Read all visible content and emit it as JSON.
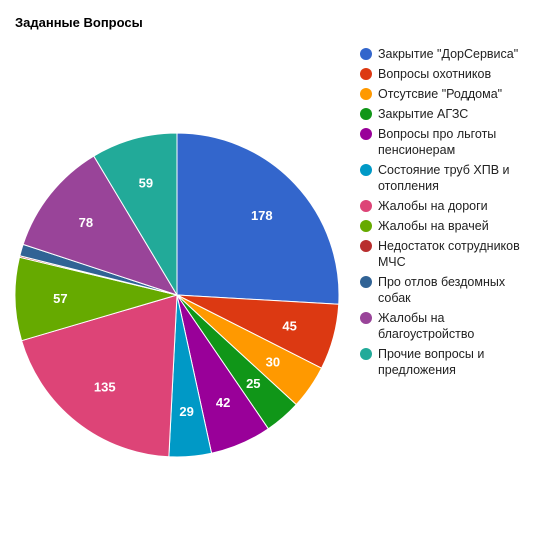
{
  "chart_data": {
    "type": "pie",
    "title": "Заданные Вопросы",
    "legend_position": "right",
    "slices": [
      {
        "label": "Закрытие \"ДорСервиса\"",
        "value": 178,
        "color": "#3366cc"
      },
      {
        "label": "Вопросы охотников",
        "value": 45,
        "color": "#dc3912"
      },
      {
        "label": "Отсутсвие \"Роддома\"",
        "value": 30,
        "color": "#ff9900"
      },
      {
        "label": "Закрытие АГЗС",
        "value": 25,
        "color": "#109618"
      },
      {
        "label": "Вопросы про льготы пенсионерам",
        "value": 42,
        "color": "#990099"
      },
      {
        "label": "Состояние труб ХПВ и отопления",
        "value": 29,
        "color": "#0099c6"
      },
      {
        "label": "Жалобы на дороги",
        "value": 135,
        "color": "#dd4477"
      },
      {
        "label": "Жалобы на врачей",
        "value": 57,
        "color": "#66aa00"
      },
      {
        "label": "Недостаток сотрудников МЧС",
        "value": 1,
        "color": "#b82e2e"
      },
      {
        "label": "Про отлов бездомных собак",
        "value": 8,
        "color": "#316395"
      },
      {
        "label": "Жалобы на благоустройство",
        "value": 78,
        "color": "#994499"
      },
      {
        "label": "Прочие вопросы и предложения",
        "value": 59,
        "color": "#22aa99"
      }
    ],
    "data_labels": [
      "178",
      "45",
      "30",
      "25",
      "42",
      "29",
      "135",
      "57",
      "",
      "",
      "78",
      "59"
    ]
  }
}
